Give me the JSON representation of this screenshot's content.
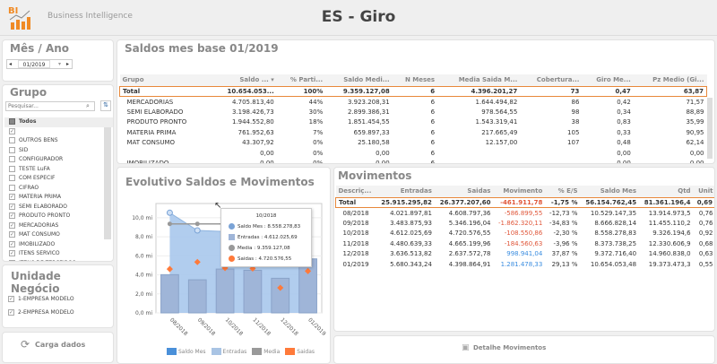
{
  "header": {
    "logo_text": "BI",
    "app_name": "Business Intelligence",
    "title": "ES - Giro"
  },
  "mes_ano": {
    "title": "Mês / Ano",
    "value": "01/2019"
  },
  "grupo": {
    "title": "Grupo",
    "search_placeholder": "Pesquisar...",
    "all_label": "Todos",
    "items": [
      {
        "label": "",
        "checked": true
      },
      {
        "label": "OUTROS BENS",
        "checked": false
      },
      {
        "label": "SID",
        "checked": false
      },
      {
        "label": "CONFIGURADOR",
        "checked": false
      },
      {
        "label": "TESTE LuFA",
        "checked": false
      },
      {
        "label": "COM ESPECIF",
        "checked": false
      },
      {
        "label": "CIFRAO",
        "checked": false
      },
      {
        "label": "MATERIA PRIMA",
        "checked": true
      },
      {
        "label": "SEMI ELABORADO",
        "checked": true
      },
      {
        "label": "PRODUTO PRONTO",
        "checked": true
      },
      {
        "label": "MERCADORIAS",
        "checked": true
      },
      {
        "label": "MAT CONSUMO",
        "checked": true
      },
      {
        "label": "IMOBILIZADO",
        "checked": true
      },
      {
        "label": "ITENS SERVICO",
        "checked": true
      },
      {
        "label": "ITENS DE TERCEIROS",
        "checked": false
      }
    ]
  },
  "unidade": {
    "title": "Unidade Negócio",
    "items": [
      {
        "label": "1-EMPRESA MODELO",
        "checked": true
      },
      {
        "label": "2-EMPRESA MODELO",
        "checked": true
      }
    ]
  },
  "carga": {
    "label": "Carga dados"
  },
  "saldos": {
    "title": "Saldos mes base 01/2019",
    "columns": [
      "Grupo",
      "Saldo ... ▾",
      "% Parti...",
      "Saldo Medi...",
      "N Meses",
      "Media Saida M...",
      "Cobertura...",
      "Giro Me...",
      "Pz Medio (Gi..."
    ],
    "total": [
      "Total",
      "10.654.053...",
      "100%",
      "9.359.127,08",
      "6",
      "4.396.201,27",
      "73",
      "0,47",
      "63,87"
    ],
    "rows": [
      [
        "MERCADORIAS",
        "4.705.813,40",
        "44%",
        "3.923.208,31",
        "6",
        "1.644.494,82",
        "86",
        "0,42",
        "71,57"
      ],
      [
        "SEMI ELABORADO",
        "3.198.426,73",
        "30%",
        "2.899.386,31",
        "6",
        "978.564,55",
        "98",
        "0,34",
        "88,89"
      ],
      [
        "PRODUTO PRONTO",
        "1.944.552,80",
        "18%",
        "1.851.454,55",
        "6",
        "1.543.319,41",
        "38",
        "0,83",
        "35,99"
      ],
      [
        "MATERIA PRIMA",
        "761.952,63",
        "7%",
        "659.897,33",
        "6",
        "217.665,49",
        "105",
        "0,33",
        "90,95"
      ],
      [
        "MAT CONSUMO",
        "43.307,92",
        "0%",
        "25.180,58",
        "6",
        "12.157,00",
        "107",
        "0,48",
        "62,14"
      ],
      [
        "",
        "0,00",
        "0%",
        "0,00",
        "6",
        "",
        "",
        "0,00",
        "0,00"
      ],
      [
        "IMOBILIZADO",
        "0,00",
        "0%",
        "0,00",
        "6",
        "",
        "",
        "0,00",
        "0,00"
      ]
    ]
  },
  "movimentos": {
    "title": "Movimentos",
    "columns": [
      "Descriç...",
      "Entradas",
      "Saidas",
      "Movimento",
      "% E/S",
      "Saldo Mes",
      "Qtd",
      "Unit"
    ],
    "total": [
      "Total",
      "25.915.295,82",
      "26.377.207,60",
      "-461.911,78",
      "-1,75 %",
      "56.154.762,45",
      "81.361.196,4",
      "0,69"
    ],
    "rows": [
      [
        "08/2018",
        "4.021.897,81",
        "4.608.797,36",
        "-586.899,55",
        "-12,73 %",
        "10.529.147,35",
        "13.914.973,5",
        "0,76"
      ],
      [
        "09/2018",
        "3.483.875,93",
        "5.346.196,04",
        "-1.862.320,11",
        "-34,83 %",
        "8.666.828,14",
        "11.455.110,2",
        "0,76"
      ],
      [
        "10/2018",
        "4.612.025,69",
        "4.720.576,55",
        "-108.550,86",
        "-2,30 %",
        "8.558.278,83",
        "9.326.194,6",
        "0,92"
      ],
      [
        "11/2018",
        "4.480.639,33",
        "4.665.199,96",
        "-184.560,63",
        "-3,96 %",
        "8.373.738,25",
        "12.330.606,9",
        "0,68"
      ],
      [
        "12/2018",
        "3.636.513,82",
        "2.637.572,78",
        "998.941,04",
        "37,87 %",
        "9.372.716,40",
        "14.960.838,0",
        "0,63"
      ],
      [
        "01/2019",
        "5.680.343,24",
        "4.398.864,91",
        "1.281.478,33",
        "29,13 %",
        "10.654.053,48",
        "19.373.473,3",
        "0,55"
      ]
    ]
  },
  "detalhe": {
    "label": "Detalhe Movimentos"
  },
  "chart_data": {
    "type": "bar+line",
    "title": "Evolutivo Saldos e Movimentos",
    "categories": [
      "08/2018",
      "09/2018",
      "10/2018",
      "11/2018",
      "12/2018",
      "01/2019"
    ],
    "ytick_labels": [
      "0,0 mi",
      "2,0 mi",
      "4,0 mi",
      "6,0 mi",
      "8,0 mi",
      "10,0 mi"
    ],
    "ylim": [
      0,
      11.5
    ],
    "unit": "mi",
    "series": [
      {
        "name": "Saldo Mes",
        "kind": "area",
        "color": "#4a90d9",
        "values": [
          10.53,
          8.67,
          8.56,
          8.37,
          9.37,
          10.65
        ]
      },
      {
        "name": "Entradas",
        "kind": "bar",
        "color": "#a9c4e4",
        "values": [
          4.02,
          3.48,
          4.61,
          4.48,
          3.64,
          5.68
        ]
      },
      {
        "name": "Media",
        "kind": "line",
        "color": "#999999",
        "values": [
          9.36,
          9.36,
          9.36,
          9.36,
          9.36,
          9.36
        ]
      },
      {
        "name": "Saidas",
        "kind": "scatter",
        "color": "#ff7a3a",
        "values": [
          4.61,
          5.35,
          4.72,
          4.67,
          2.64,
          4.4
        ]
      }
    ],
    "legend": "bottom",
    "tooltip": {
      "title": "10/2018",
      "lines": [
        "Saldo Mes : 8.558.278,83",
        "Entradas : 4.612.025,69",
        "Media : 9.359.127,08",
        "Saidas : 4.720.576,55"
      ]
    }
  }
}
